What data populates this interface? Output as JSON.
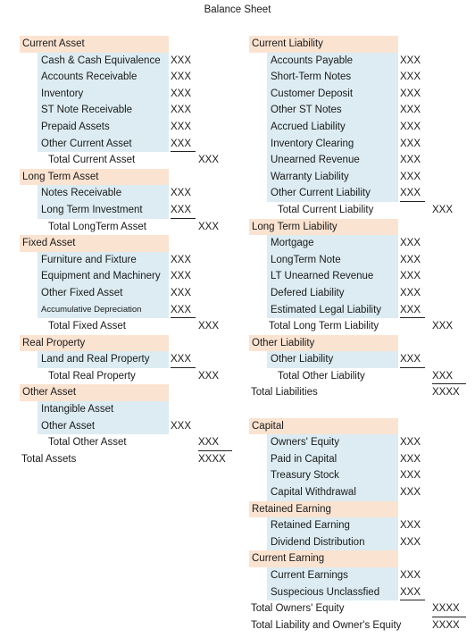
{
  "title": "Balance Sheet",
  "left": {
    "sections": [
      {
        "header": "Current Asset",
        "items": [
          {
            "label": "Cash & Cash Equivalence",
            "value": "XXX"
          },
          {
            "label": "Accounts Receivable",
            "value": "XXX"
          },
          {
            "label": "Inventory",
            "value": "XXX"
          },
          {
            "label": "ST Note Receivable",
            "value": "XXX"
          },
          {
            "label": "Prepaid Assets",
            "value": "XXX"
          },
          {
            "label": "Other Current Asset",
            "value": "XXX"
          }
        ],
        "total": {
          "label": "Total Current Asset",
          "value": "XXX"
        }
      },
      {
        "header": "Long Term Asset",
        "items": [
          {
            "label": "Notes Receivable",
            "value": "XXX"
          },
          {
            "label": "Long Term Investment",
            "value": "XXX"
          }
        ],
        "total": {
          "label": "Total LongTerm Asset",
          "value": "XXX"
        }
      },
      {
        "header": "Fixed Asset",
        "items": [
          {
            "label": "Furniture and Fixture",
            "value": "XXX"
          },
          {
            "label": "Equipment and Machinery",
            "value": "XXX"
          },
          {
            "label": "Other Fixed Asset",
            "value": "XXX"
          },
          {
            "label": "Accumulative Depreciation",
            "value": "XXX"
          }
        ],
        "total": {
          "label": "Total Fixed Asset",
          "value": "XXX"
        }
      },
      {
        "header": "Real Property",
        "items": [
          {
            "label": "Land and Real Property",
            "value": "XXX"
          }
        ],
        "total": {
          "label": "Total Real Property",
          "value": "XXX"
        }
      },
      {
        "header": "Other Asset",
        "items": [
          {
            "label": "Intangible Asset",
            "value": ""
          },
          {
            "label": "Other Asset",
            "value": "XXX"
          }
        ],
        "total": {
          "label": "Total Other Asset",
          "value": "XXX"
        }
      }
    ],
    "grand_total": {
      "label": "Total Assets",
      "value": "XXXX"
    }
  },
  "right": {
    "sections": [
      {
        "header": "Current Liability",
        "items": [
          {
            "label": "Accounts Payable",
            "value": "XXX"
          },
          {
            "label": "Short-Term Notes",
            "value": "XXX"
          },
          {
            "label": "Customer Deposit",
            "value": "XXX"
          },
          {
            "label": "Other ST Notes",
            "value": "XXX"
          },
          {
            "label": "Accrued Liability",
            "value": "XXX"
          },
          {
            "label": "Inventory Clearing",
            "value": "XXX"
          },
          {
            "label": "Unearned Revenue",
            "value": "XXX"
          },
          {
            "label": "Warranty Liability",
            "value": "XXX"
          },
          {
            "label": "Other Current Liability",
            "value": "XXX"
          }
        ],
        "total": {
          "label": "Total Current Liability",
          "value": "XXX"
        }
      },
      {
        "header": "Long Term Liability",
        "items": [
          {
            "label": "Mortgage",
            "value": "XXX"
          },
          {
            "label": "LongTerm Note",
            "value": "XXX"
          },
          {
            "label": "LT Unearned Revenue",
            "value": "XXX"
          },
          {
            "label": "Defered Liability",
            "value": "XXX"
          },
          {
            "label": "Estimated Legal Liability",
            "value": "XXX"
          }
        ],
        "total": {
          "label": "Total Long Term Liability",
          "value": "XXX"
        }
      },
      {
        "header": "Other Liability",
        "items": [
          {
            "label": "Other Liability",
            "value": "XXX"
          }
        ],
        "total": {
          "label": "Total Other Liability",
          "value": "XXX"
        }
      }
    ],
    "liabilities_total": {
      "label": "Total Liabilities",
      "value": "XXXX"
    },
    "capital_sections": [
      {
        "header": "Capital",
        "items": [
          {
            "label": "Owners' Equity",
            "value": "XXX"
          },
          {
            "label": "Paid in Capital",
            "value": "XXX"
          },
          {
            "label": "Treasury Stock",
            "value": "XXX"
          },
          {
            "label": "Capital Withdrawal",
            "value": "XXX"
          }
        ]
      },
      {
        "header": "Retained Earning",
        "items": [
          {
            "label": "Retained Earning",
            "value": "XXX"
          },
          {
            "label": "Dividend Distribution",
            "value": "XXX"
          }
        ]
      },
      {
        "header": "Current Earning",
        "items": [
          {
            "label": "Current Earnings",
            "value": "XXX"
          },
          {
            "label": "Suspecious Unclassfied",
            "value": "XXX"
          }
        ]
      }
    ],
    "owners_total": {
      "label": "Total Owners' Equity",
      "value": "XXXX"
    },
    "liab_owner_total": {
      "label": "Total Liability and Owner's Equity",
      "value": "XXXX"
    }
  }
}
